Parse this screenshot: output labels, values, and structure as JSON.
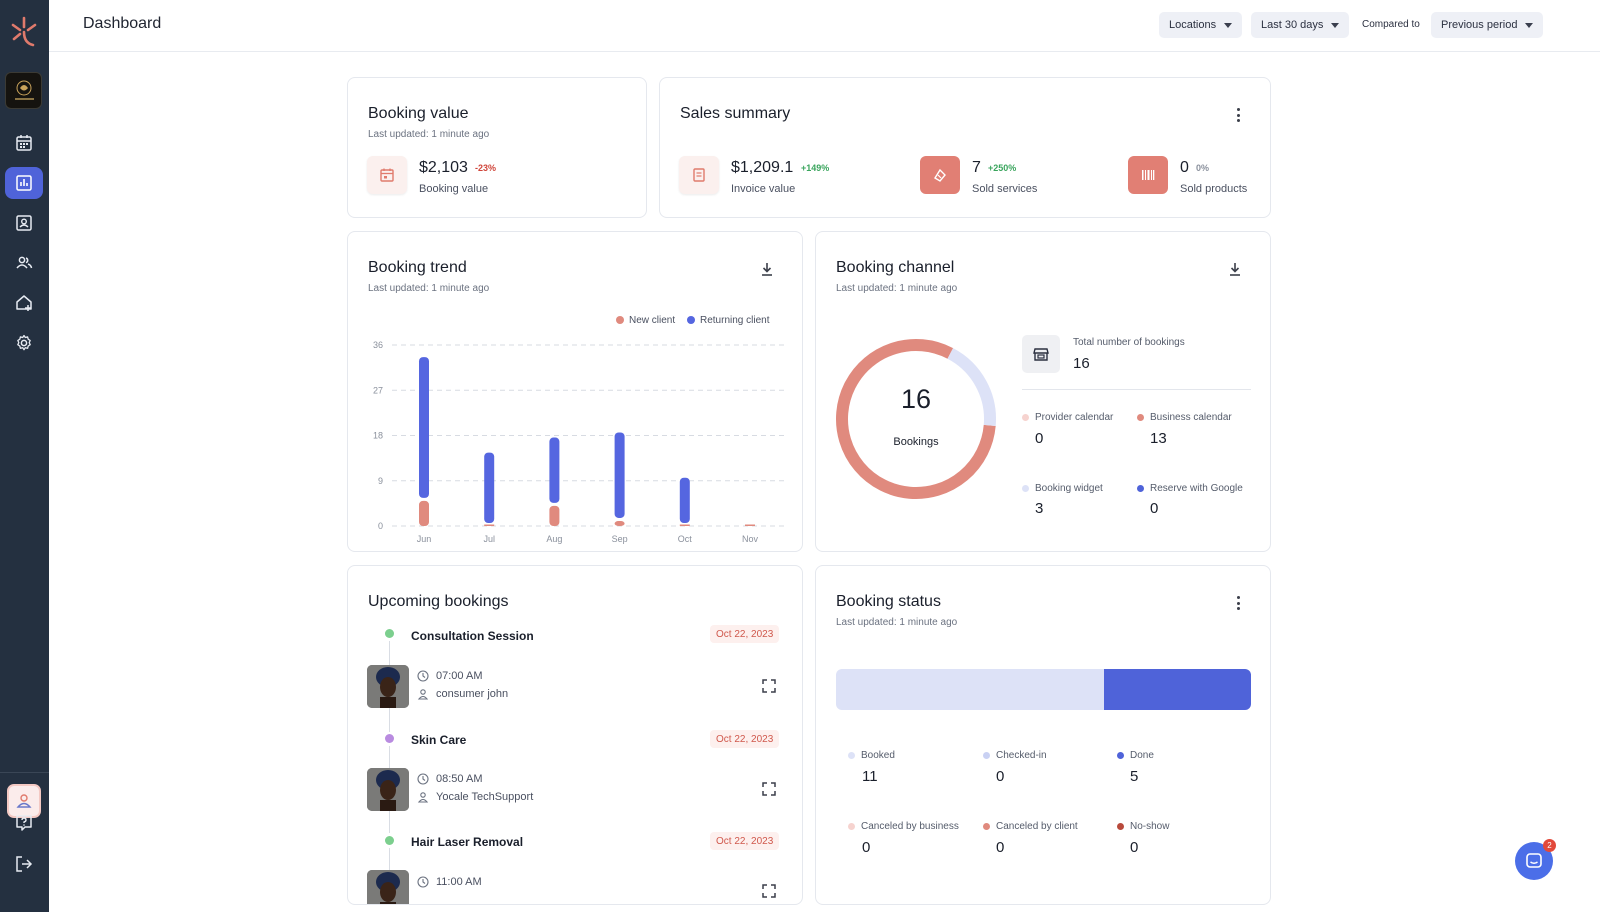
{
  "header": {
    "title": "Dashboard",
    "locations_label": "Locations",
    "period_label": "Last 30 days",
    "compared_label": "Compared to",
    "comparison_label": "Previous period"
  },
  "colors": {
    "sidebar_bg": "#243040",
    "accent_blue": "#4f63d9",
    "salmon": "#e17f74",
    "light_blue": "#dde2f7",
    "positive": "#3aa55d",
    "negative": "#d0453a"
  },
  "booking_value": {
    "title": "Booking value",
    "updated": "Last updated: 1 minute ago",
    "value": "$2,103",
    "change": "-23%",
    "label": "Booking value"
  },
  "sales_summary": {
    "title": "Sales summary",
    "items": [
      {
        "value": "$1,209.1",
        "change": "+149%",
        "label": "Invoice value"
      },
      {
        "value": "7",
        "change": "+250%",
        "label": "Sold services"
      },
      {
        "value": "0",
        "change": "0%",
        "label": "Sold products"
      }
    ]
  },
  "booking_trend": {
    "title": "Booking trend",
    "updated": "Last updated: 1 minute ago",
    "legend": [
      "New client",
      "Returning client"
    ]
  },
  "chart_data": {
    "type": "bar",
    "stacked": true,
    "categories": [
      "Jun",
      "Jul",
      "Aug",
      "Sep",
      "Oct",
      "Nov"
    ],
    "series": [
      {
        "name": "New client",
        "color": "#e08a7e",
        "values": [
          5,
          0,
          4,
          1,
          0,
          0
        ]
      },
      {
        "name": "Returning client",
        "color": "#5566e0",
        "values": [
          28,
          14,
          13,
          17,
          9,
          0
        ]
      }
    ],
    "yticks": [
      0,
      9,
      18,
      27,
      36
    ],
    "ylim": [
      0,
      36
    ],
    "grid": true,
    "legend_position": "top-right"
  },
  "booking_channel": {
    "title": "Booking channel",
    "updated": "Last updated: 1 minute ago",
    "total": "16",
    "total_unit": "Bookings",
    "total_label": "Total number of bookings",
    "total_value": "16",
    "channels": [
      {
        "label": "Provider calendar",
        "value": "0",
        "color": "#f6d3cf"
      },
      {
        "label": "Business calendar",
        "value": "13",
        "color": "#e08a7e"
      },
      {
        "label": "Booking widget",
        "value": "3",
        "color": "#dde2f7"
      },
      {
        "label": "Reserve with Google",
        "value": "0",
        "color": "#4f63d9"
      }
    ],
    "donut": [
      {
        "label": "Business calendar",
        "value": 13,
        "color": "#e08a7e"
      },
      {
        "label": "Booking widget",
        "value": 3,
        "color": "#dde2f7"
      }
    ]
  },
  "upcoming": {
    "title": "Upcoming bookings",
    "items": [
      {
        "name": "Consultation Session",
        "date": "Oct 22, 2023",
        "time": "07:00 AM",
        "person": "consumer john",
        "dot": "#7ccf8e"
      },
      {
        "name": "Skin Care",
        "date": "Oct 22, 2023",
        "time": "08:50 AM",
        "person": "Yocale TechSupport",
        "dot": "#b98be0"
      },
      {
        "name": "Hair Laser Removal",
        "date": "Oct 22, 2023",
        "time": "11:00 AM",
        "person": "",
        "dot": "#7ccf8e"
      }
    ]
  },
  "booking_status": {
    "title": "Booking status",
    "updated": "Last updated: 1 minute ago",
    "bar": {
      "booked": 11,
      "done": 5
    },
    "statuses": [
      {
        "label": "Booked",
        "value": "11",
        "color": "#dde2f7"
      },
      {
        "label": "Checked-in",
        "value": "0",
        "color": "#c9d1f3"
      },
      {
        "label": "Done",
        "value": "5",
        "color": "#4f63d9"
      },
      {
        "label": "Canceled by business",
        "value": "0",
        "color": "#f6d3cf"
      },
      {
        "label": "Canceled by client",
        "value": "0",
        "color": "#e08a7e"
      },
      {
        "label": "No-show",
        "value": "0",
        "color": "#b84a3c"
      }
    ]
  },
  "chat": {
    "badge": "2"
  }
}
